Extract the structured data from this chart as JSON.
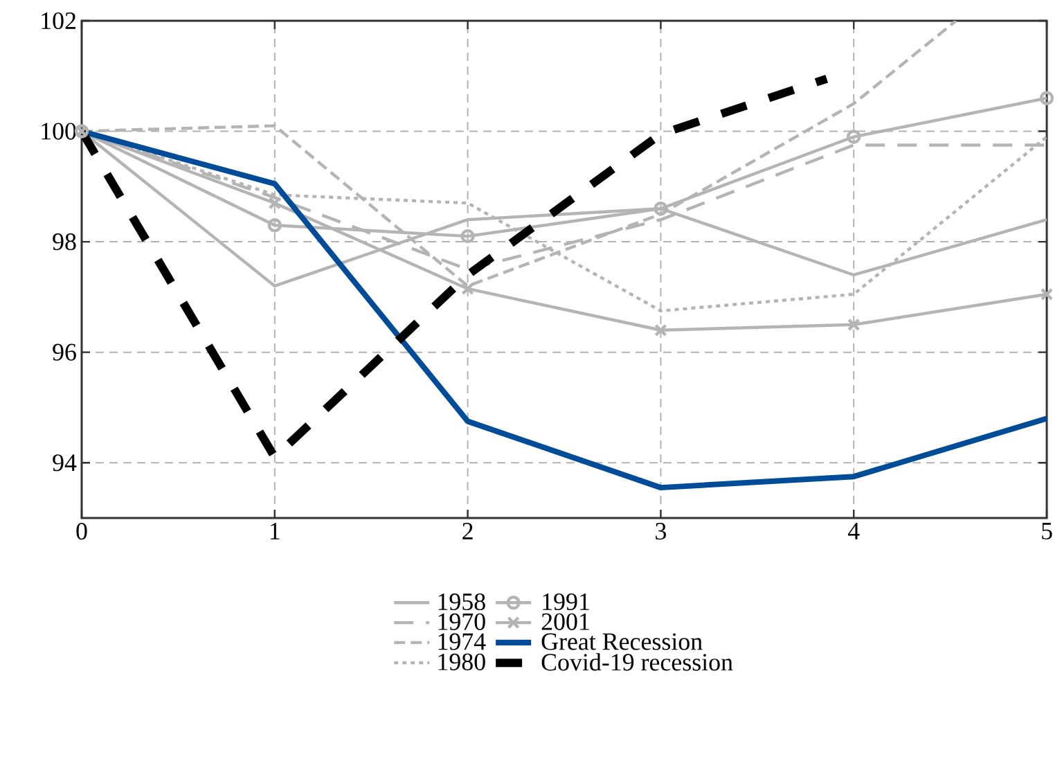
{
  "chart_data": {
    "type": "line",
    "x": [
      0,
      1,
      2,
      3,
      4,
      5
    ],
    "xlim": [
      0,
      5
    ],
    "xticks": [
      0,
      1,
      2,
      3,
      4,
      5
    ],
    "ylim": [
      93,
      102
    ],
    "yticks": [
      94,
      96,
      98,
      100,
      102
    ],
    "grid": true,
    "legend": "bottom",
    "series": [
      {
        "name": "1958",
        "color": "#b4b4b4",
        "line_style": "solid",
        "marker": "none",
        "values": [
          100,
          97.2,
          98.4,
          98.6,
          97.4,
          98.4
        ]
      },
      {
        "name": "1970",
        "color": "#b4b4b4",
        "line_style": "dashed",
        "marker": "none",
        "values": [
          100,
          98.8,
          97.5,
          98.4,
          99.75,
          99.75
        ]
      },
      {
        "name": "1974",
        "color": "#b4b4b4",
        "line_style": "dashdot",
        "marker": "none",
        "x": [
          0,
          1,
          2,
          3,
          4,
          4.53
        ],
        "values": [
          100,
          100.1,
          97.2,
          98.5,
          100.5,
          102
        ]
      },
      {
        "name": "1980",
        "color": "#b4b4b4",
        "line_style": "dotted",
        "marker": "none",
        "values": [
          100,
          98.85,
          98.7,
          96.75,
          97.05,
          99.9
        ]
      },
      {
        "name": "1991",
        "color": "#b4b4b4",
        "line_style": "solid",
        "marker": "circle",
        "values": [
          100,
          98.3,
          98.1,
          98.6,
          99.9,
          100.6
        ]
      },
      {
        "name": "2001",
        "color": "#b4b4b4",
        "line_style": "solid",
        "marker": "cross",
        "values": [
          100,
          98.7,
          97.15,
          96.4,
          96.5,
          97.05
        ]
      },
      {
        "name": "Great Recession",
        "color": "#004c99",
        "line_style": "solid",
        "marker": "none",
        "values": [
          100,
          99.05,
          94.75,
          93.55,
          93.75,
          94.8
        ]
      },
      {
        "name": "Covid-19 recession",
        "color": "#000000",
        "line_style": "dashed",
        "marker": "none",
        "x": [
          0,
          1,
          2,
          3,
          3.86
        ],
        "values": [
          100,
          94.1,
          97.4,
          99.95,
          100.95
        ]
      }
    ]
  }
}
